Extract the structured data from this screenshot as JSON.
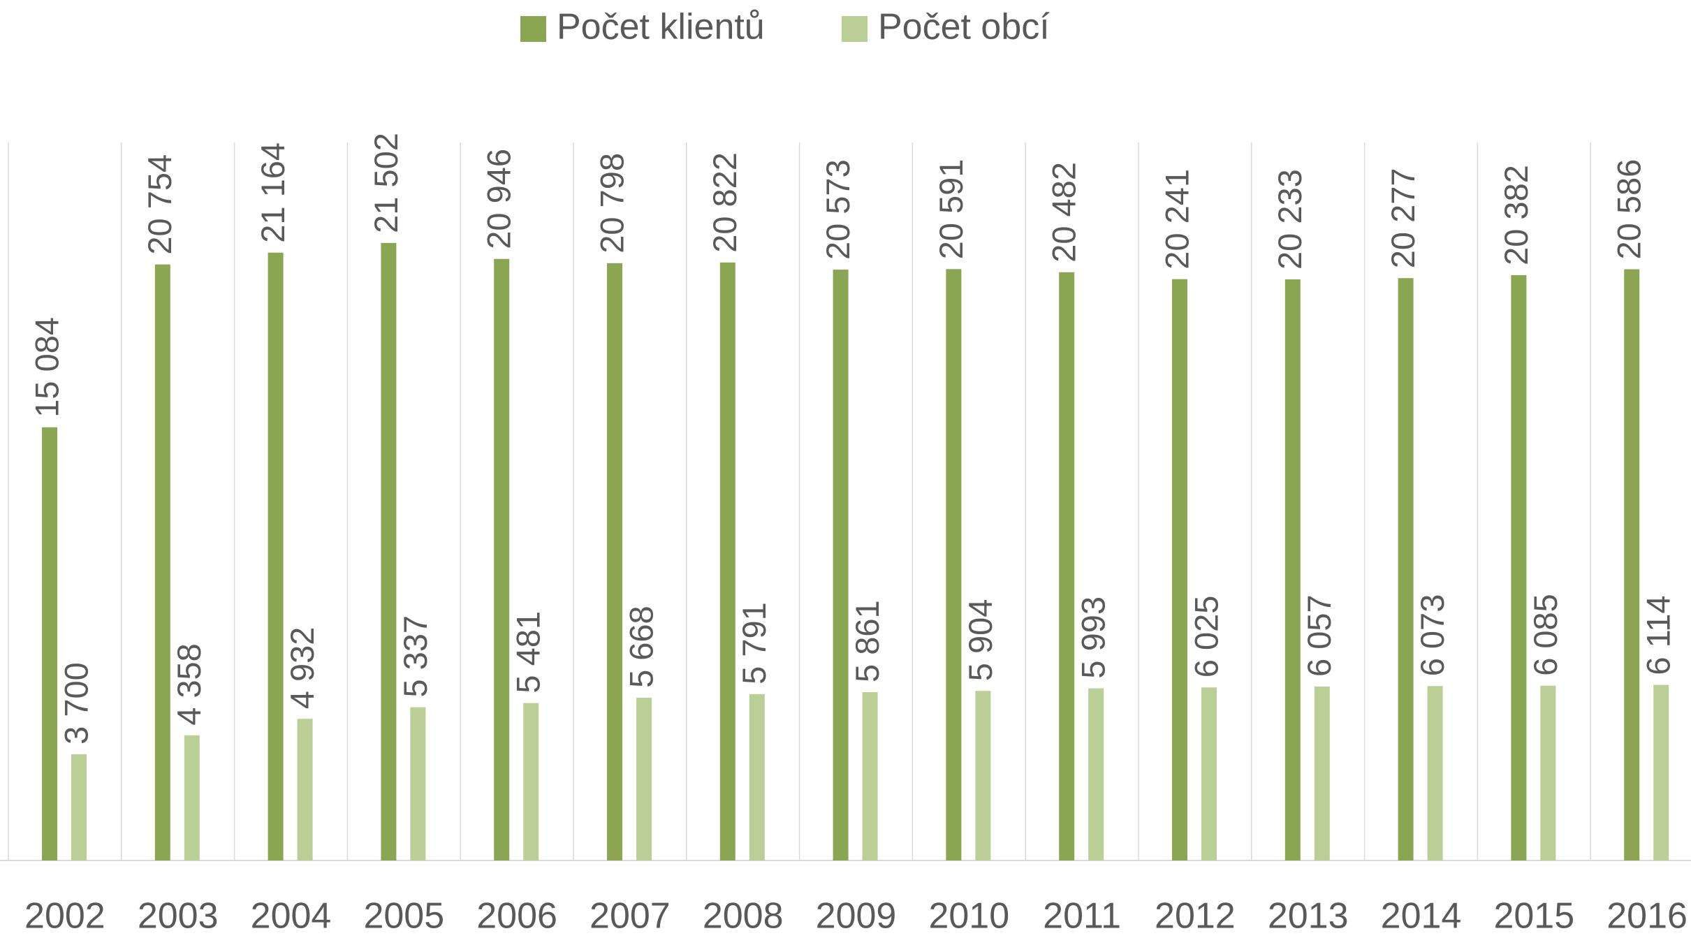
{
  "chart_data": {
    "type": "bar",
    "categories": [
      "2002",
      "2003",
      "2004",
      "2005",
      "2006",
      "2007",
      "2008",
      "2009",
      "2010",
      "2011",
      "2012",
      "2013",
      "2014",
      "2015",
      "2016"
    ],
    "series": [
      {
        "name": "Počet klientů",
        "color": "#8aa652",
        "values": [
          15084,
          20754,
          21164,
          21502,
          20946,
          20798,
          20822,
          20573,
          20591,
          20482,
          20241,
          20233,
          20277,
          20382,
          20586
        ],
        "value_labels": [
          "15 084",
          "20 754",
          "21 164",
          "21 502",
          "20 946",
          "20 798",
          "20 822",
          "20 573",
          "20 591",
          "20 482",
          "20 241",
          "20 233",
          "20 277",
          "20 382",
          "20 586"
        ]
      },
      {
        "name": "Počet obcí",
        "color": "#b9cf96",
        "values": [
          3700,
          4358,
          4932,
          5337,
          5481,
          5668,
          5791,
          5861,
          5904,
          5993,
          6025,
          6057,
          6073,
          6085,
          6114
        ],
        "value_labels": [
          "3 700",
          "4 358",
          "4 932",
          "5 337",
          "5 481",
          "5 668",
          "5 791",
          "5 861",
          "5 904",
          "5 993",
          "6 025",
          "6 057",
          "6 073",
          "6 085",
          "6 114"
        ]
      }
    ],
    "ylim": [
      0,
      25000
    ],
    "legend": "top"
  }
}
